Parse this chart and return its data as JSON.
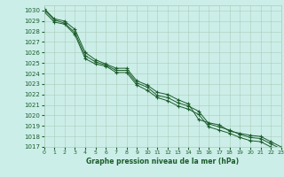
{
  "xlabel": "Graphe pression niveau de la mer (hPa)",
  "xlim": [
    0,
    23
  ],
  "ylim": [
    1017,
    1030.5
  ],
  "yticks": [
    1017,
    1018,
    1019,
    1020,
    1021,
    1022,
    1023,
    1024,
    1025,
    1026,
    1027,
    1028,
    1029,
    1030
  ],
  "xticks": [
    0,
    1,
    2,
    3,
    4,
    5,
    6,
    7,
    8,
    9,
    10,
    11,
    12,
    13,
    14,
    15,
    16,
    17,
    18,
    19,
    20,
    21,
    22,
    23
  ],
  "background_color": "#cceee8",
  "grid_color": "#aaccbb",
  "line_color": "#1a5c2a",
  "series": [
    [
      1030.2,
      1029.2,
      1029.0,
      1028.2,
      1026.0,
      1025.3,
      1024.9,
      1024.5,
      1024.5,
      1023.3,
      1022.9,
      1022.2,
      1022.0,
      1021.5,
      1021.1,
      1019.6,
      1019.3,
      1019.1,
      1018.5,
      1018.3,
      1018.1,
      1018.0,
      1017.5,
      1017.0
    ],
    [
      1030.1,
      1029.1,
      1028.8,
      1027.9,
      1025.7,
      1025.1,
      1024.8,
      1024.3,
      1024.3,
      1023.1,
      1022.7,
      1021.9,
      1021.7,
      1021.2,
      1020.9,
      1020.4,
      1019.2,
      1018.9,
      1018.6,
      1018.2,
      1017.9,
      1017.8,
      1017.3,
      1016.8
    ],
    [
      1029.9,
      1028.9,
      1028.7,
      1027.7,
      1025.4,
      1024.9,
      1024.7,
      1024.1,
      1024.1,
      1022.9,
      1022.4,
      1021.7,
      1021.4,
      1020.9,
      1020.6,
      1020.1,
      1018.9,
      1018.6,
      1018.3,
      1017.9,
      1017.6,
      1017.5,
      1017.0,
      1016.6
    ]
  ]
}
